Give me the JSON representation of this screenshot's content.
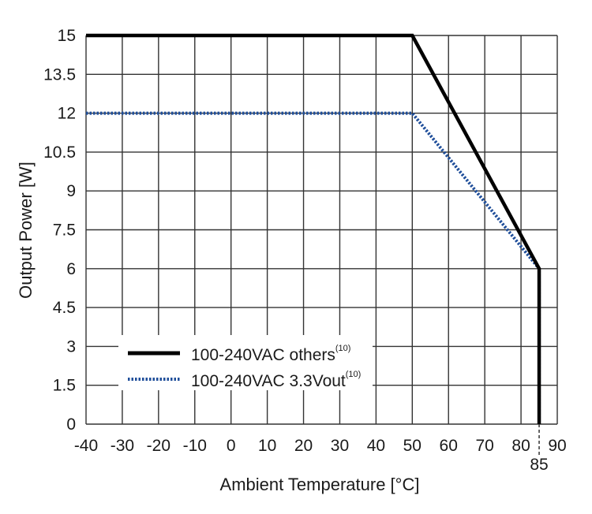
{
  "chart_data": {
    "type": "line",
    "title": "",
    "xlabel": "Ambient Temperature [°C]",
    "ylabel": "Output Power [W]",
    "xlim": [
      -40,
      90
    ],
    "ylim": [
      0,
      15
    ],
    "xticks": [
      -40,
      -30,
      -20,
      -10,
      0,
      10,
      20,
      30,
      40,
      50,
      60,
      70,
      80,
      90
    ],
    "extra_xtick": 85,
    "yticks": [
      0,
      1.5,
      3,
      4.5,
      6,
      7.5,
      9,
      10.5,
      12,
      13.5,
      15
    ],
    "grid": true,
    "legend_position": "bottom-left",
    "series": [
      {
        "name": "100-240VAC others",
        "superscript": "(10)",
        "style": "solid",
        "color": "#000000",
        "x": [
          -40,
          50,
          85,
          85
        ],
        "y": [
          15,
          15,
          6,
          0
        ]
      },
      {
        "name": "100-240VAC 3.3Vout",
        "superscript": "(10)",
        "style": "dotted",
        "color": "#1f4e9a",
        "x": [
          -40,
          50,
          85,
          85
        ],
        "y": [
          12,
          12,
          6,
          0
        ]
      }
    ]
  }
}
